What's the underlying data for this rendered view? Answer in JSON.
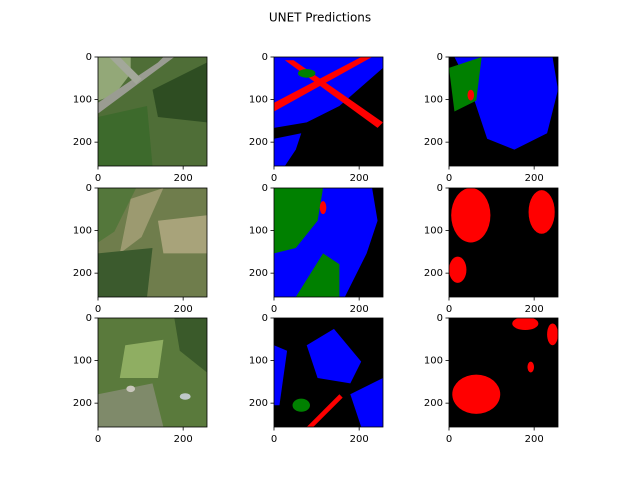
{
  "title": "UNET Predictions",
  "chart_data": [
    {
      "type": "image",
      "xlim": [
        0,
        256
      ],
      "ylim": [
        256,
        0
      ],
      "xticks": [
        0,
        200
      ],
      "yticks": [
        0,
        100,
        200
      ]
    },
    {
      "type": "image",
      "xlim": [
        0,
        256
      ],
      "ylim": [
        256,
        0
      ],
      "xticks": [
        0,
        200
      ],
      "yticks": [
        0,
        100,
        200
      ]
    },
    {
      "type": "image",
      "xlim": [
        0,
        256
      ],
      "ylim": [
        256,
        0
      ],
      "xticks": [
        0,
        200
      ],
      "yticks": [
        0,
        100,
        200
      ]
    },
    {
      "type": "image",
      "xlim": [
        0,
        256
      ],
      "ylim": [
        256,
        0
      ],
      "xticks": [
        0,
        200
      ],
      "yticks": [
        0,
        100,
        200
      ]
    },
    {
      "type": "image",
      "xlim": [
        0,
        256
      ],
      "ylim": [
        256,
        0
      ],
      "xticks": [
        0,
        200
      ],
      "yticks": [
        0,
        100,
        200
      ]
    },
    {
      "type": "image",
      "xlim": [
        0,
        256
      ],
      "ylim": [
        256,
        0
      ],
      "xticks": [
        0,
        200
      ],
      "yticks": [
        0,
        100,
        200
      ]
    },
    {
      "type": "image",
      "xlim": [
        0,
        256
      ],
      "ylim": [
        256,
        0
      ],
      "xticks": [
        0,
        200
      ],
      "yticks": [
        0,
        100,
        200
      ]
    },
    {
      "type": "image",
      "xlim": [
        0,
        256
      ],
      "ylim": [
        256,
        0
      ],
      "xticks": [
        0,
        200
      ],
      "yticks": [
        0,
        100,
        200
      ]
    },
    {
      "type": "image",
      "xlim": [
        0,
        256
      ],
      "ylim": [
        256,
        0
      ],
      "xticks": [
        0,
        200
      ],
      "yticks": [
        0,
        100,
        200
      ]
    }
  ]
}
